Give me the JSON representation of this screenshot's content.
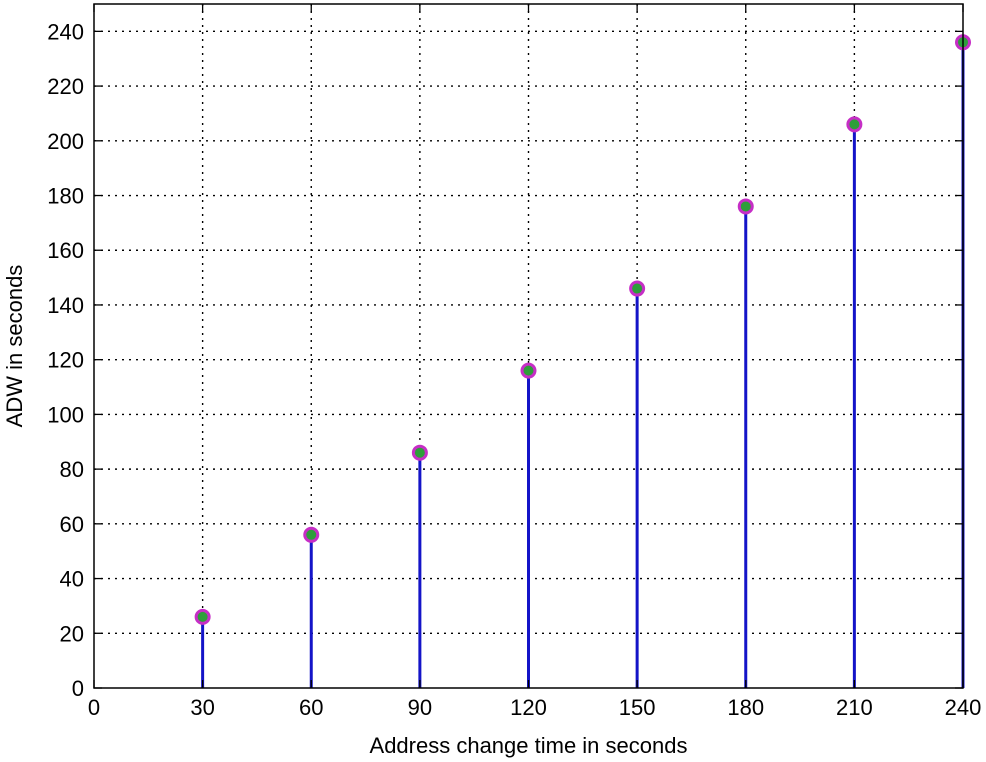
{
  "chart_data": {
    "type": "stem",
    "title": "",
    "xlabel": "Address change time in seconds",
    "ylabel": "ADW in seconds",
    "x": [
      30,
      60,
      90,
      120,
      150,
      180,
      210,
      240
    ],
    "y": [
      26,
      56,
      86,
      116,
      146,
      176,
      206,
      236
    ],
    "xlim": [
      0,
      240
    ],
    "ylim": [
      0,
      250
    ],
    "x_ticks": [
      0,
      30,
      60,
      90,
      120,
      150,
      180,
      210,
      240
    ],
    "y_ticks": [
      0,
      20,
      40,
      60,
      80,
      100,
      120,
      140,
      160,
      180,
      200,
      220,
      240
    ],
    "grid": true,
    "legend": "none",
    "colors": {
      "stem": "#1414c8",
      "marker_outer": "#c62ec6",
      "marker_inner": "#2e9e3a"
    }
  }
}
